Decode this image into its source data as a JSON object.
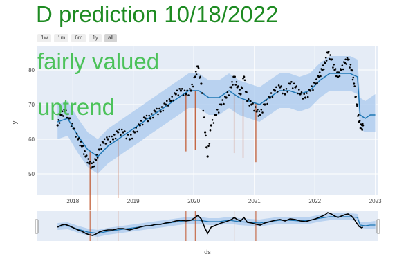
{
  "title": "D prediction 10/18/2022",
  "range_buttons": [
    "1w",
    "1m",
    "6m",
    "1y",
    "all"
  ],
  "active_button": "all",
  "colors": {
    "title": "#1e8b22",
    "annotation": "#4cc25a",
    "plot_bg": "#e5ecf6",
    "band": "#aac9ee",
    "trend": "#1f77b4",
    "actual": "#000000",
    "changepoint": "#c0542a"
  },
  "chart_data": {
    "type": "line",
    "xlabel": "ds",
    "ylabel": "y",
    "x_range": [
      "2017-06-01",
      "2023-01-15"
    ],
    "y_range": [
      44,
      87
    ],
    "y_ticks": [
      50,
      60,
      70,
      80
    ],
    "x_ticks": [
      {
        "date": "2018-01-01",
        "label": "2018"
      },
      {
        "date": "2019-01-01",
        "label": "2019"
      },
      {
        "date": "2020-01-01",
        "label": "2020"
      },
      {
        "date": "2021-01-01",
        "label": "2021"
      },
      {
        "date": "2022-01-01",
        "label": "2022"
      },
      {
        "date": "2023-01-01",
        "label": "2023"
      }
    ],
    "annotations": [
      "fairly valued",
      "uptrend"
    ],
    "series": [
      {
        "kind": "actual",
        "points": [
          [
            "2017-10-01",
            64
          ],
          [
            "2017-10-25",
            67
          ],
          [
            "2017-11-15",
            68
          ],
          [
            "2017-12-10",
            66
          ],
          [
            "2018-01-05",
            63
          ],
          [
            "2018-02-01",
            60
          ],
          [
            "2018-02-25",
            58
          ],
          [
            "2018-03-20",
            55
          ],
          [
            "2018-04-10",
            53
          ],
          [
            "2018-05-01",
            52
          ],
          [
            "2018-05-20",
            54
          ],
          [
            "2018-06-10",
            57
          ],
          [
            "2018-07-05",
            59
          ],
          [
            "2018-08-01",
            60
          ],
          [
            "2018-09-01",
            60
          ],
          [
            "2018-10-01",
            62
          ],
          [
            "2018-11-01",
            62
          ],
          [
            "2018-12-10",
            60
          ],
          [
            "2019-01-10",
            62
          ],
          [
            "2019-02-10",
            64
          ],
          [
            "2019-03-15",
            66
          ],
          [
            "2019-04-15",
            66
          ],
          [
            "2019-05-15",
            68
          ],
          [
            "2019-06-15",
            68
          ],
          [
            "2019-07-15",
            70
          ],
          [
            "2019-08-15",
            71
          ],
          [
            "2019-09-15",
            73
          ],
          [
            "2019-10-15",
            74
          ],
          [
            "2019-11-15",
            73
          ],
          [
            "2019-12-15",
            74
          ],
          [
            "2020-01-10",
            78
          ],
          [
            "2020-01-25",
            81
          ],
          [
            "2020-02-15",
            76
          ],
          [
            "2020-03-10",
            62
          ],
          [
            "2020-03-25",
            55
          ],
          [
            "2020-04-15",
            64
          ],
          [
            "2020-05-15",
            67
          ],
          [
            "2020-06-15",
            70
          ],
          [
            "2020-07-15",
            72
          ],
          [
            "2020-08-15",
            75
          ],
          [
            "2020-09-01",
            78
          ],
          [
            "2020-09-20",
            75
          ],
          [
            "2020-10-10",
            73
          ],
          [
            "2020-10-30",
            78
          ],
          [
            "2020-11-20",
            71
          ],
          [
            "2020-12-15",
            70
          ],
          [
            "2021-01-15",
            68
          ],
          [
            "2021-02-05",
            67
          ],
          [
            "2021-03-05",
            70
          ],
          [
            "2021-04-05",
            72
          ],
          [
            "2021-05-05",
            74
          ],
          [
            "2021-06-05",
            75
          ],
          [
            "2021-07-05",
            73
          ],
          [
            "2021-08-05",
            76
          ],
          [
            "2021-09-05",
            75
          ],
          [
            "2021-10-05",
            73
          ],
          [
            "2021-11-05",
            72
          ],
          [
            "2021-12-05",
            74
          ],
          [
            "2022-01-05",
            76
          ],
          [
            "2022-01-25",
            78
          ],
          [
            "2022-02-15",
            80
          ],
          [
            "2022-03-05",
            82
          ],
          [
            "2022-03-20",
            85
          ],
          [
            "2022-04-10",
            83
          ],
          [
            "2022-05-01",
            80
          ],
          [
            "2022-05-20",
            78
          ],
          [
            "2022-06-10",
            80
          ],
          [
            "2022-07-01",
            82
          ],
          [
            "2022-07-20",
            83
          ],
          [
            "2022-08-10",
            80
          ],
          [
            "2022-08-25",
            76
          ],
          [
            "2022-09-10",
            70
          ],
          [
            "2022-09-25",
            65
          ],
          [
            "2022-10-10",
            63
          ],
          [
            "2022-10-18",
            64
          ]
        ]
      },
      {
        "kind": "forecast",
        "points": [
          [
            "2017-10-01",
            65
          ],
          [
            "2017-12-01",
            66
          ],
          [
            "2018-02-01",
            61
          ],
          [
            "2018-04-01",
            57
          ],
          [
            "2018-06-01",
            55
          ],
          [
            "2018-08-01",
            58
          ],
          [
            "2018-10-01",
            60
          ],
          [
            "2018-12-01",
            62
          ],
          [
            "2019-02-01",
            64
          ],
          [
            "2019-04-01",
            66
          ],
          [
            "2019-06-01",
            68
          ],
          [
            "2019-08-01",
            70
          ],
          [
            "2019-10-01",
            72
          ],
          [
            "2019-12-01",
            74
          ],
          [
            "2020-02-01",
            74
          ],
          [
            "2020-04-01",
            72
          ],
          [
            "2020-06-01",
            72
          ],
          [
            "2020-08-01",
            74
          ],
          [
            "2020-10-01",
            72
          ],
          [
            "2020-12-01",
            71
          ],
          [
            "2021-02-01",
            70
          ],
          [
            "2021-04-01",
            72
          ],
          [
            "2021-06-01",
            74
          ],
          [
            "2021-08-01",
            74
          ],
          [
            "2021-10-01",
            73
          ],
          [
            "2021-12-01",
            74
          ],
          [
            "2022-02-01",
            77
          ],
          [
            "2022-04-01",
            79
          ],
          [
            "2022-06-01",
            79
          ],
          [
            "2022-08-01",
            79
          ],
          [
            "2022-09-15",
            78
          ],
          [
            "2022-10-01",
            67
          ],
          [
            "2022-11-01",
            66
          ],
          [
            "2022-12-01",
            67
          ],
          [
            "2023-01-01",
            67
          ]
        ],
        "lower": [
          [
            60,
            61,
            56,
            52,
            50,
            53,
            55,
            57,
            59,
            61,
            63,
            65,
            67,
            69,
            69,
            67,
            67,
            69,
            67,
            66,
            65,
            67,
            69,
            69,
            68,
            69,
            72,
            74,
            74,
            74,
            73,
            63,
            62,
            62,
            62
          ]
        ],
        "upper": [
          [
            70,
            71,
            66,
            62,
            60,
            63,
            65,
            67,
            69,
            71,
            73,
            75,
            77,
            79,
            79,
            77,
            77,
            79,
            77,
            76,
            75,
            77,
            79,
            79,
            78,
            79,
            82,
            84,
            84,
            84,
            83,
            72,
            71,
            72,
            73
          ]
        ]
      }
    ],
    "changepoints": [
      "2018-04-15",
      "2018-06-01",
      "2018-10-01",
      "2019-11-15",
      "2020-01-10",
      "2020-09-01",
      "2020-10-25",
      "2021-01-10"
    ]
  }
}
